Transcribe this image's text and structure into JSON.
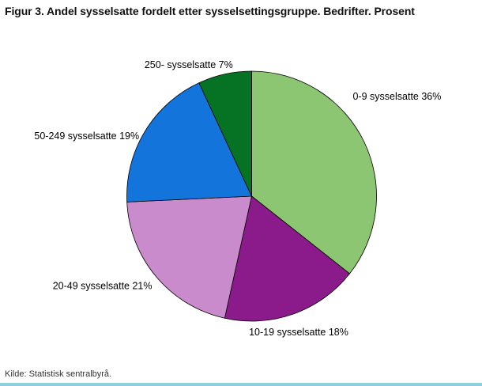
{
  "figure": {
    "title": "Figur 3. Andel sysselsatte fordelt etter sysselsettingsgruppe. Bedrifter. Prosent",
    "source_note": "Kilde: Statistisk sentralbyrå.",
    "accent_bar_color": "#8FCFE0"
  },
  "chart_data": {
    "type": "pie",
    "title": "Figur 3. Andel sysselsatte fordelt etter sysselsettingsgruppe. Bedrifter. Prosent",
    "source": "Kilde: Statistisk sentralbyrå.",
    "direction": "clockwise",
    "start_angle_deg": 0,
    "legend_position": "none",
    "label_style": "outside, category name + percent",
    "slices": [
      {
        "label": "0-9 sysselsatte",
        "value": 36,
        "display": "0-9 sysselsatte 36%",
        "color": "#8CC673"
      },
      {
        "label": "10-19 sysselsatte",
        "value": 18,
        "display": "10-19 sysselsatte 18%",
        "color": "#8B1A8B"
      },
      {
        "label": "20-49 sysselsatte",
        "value": 21,
        "display": "20-49 sysselsatte 21%",
        "color": "#C98BCB"
      },
      {
        "label": "50-249 sysselsatte",
        "value": 19,
        "display": "50-249 sysselsatte 19%",
        "color": "#1375DB"
      },
      {
        "label": "250- sysselsatte",
        "value": 7,
        "display": "250- sysselsatte 7%",
        "color": "#057323"
      }
    ]
  }
}
